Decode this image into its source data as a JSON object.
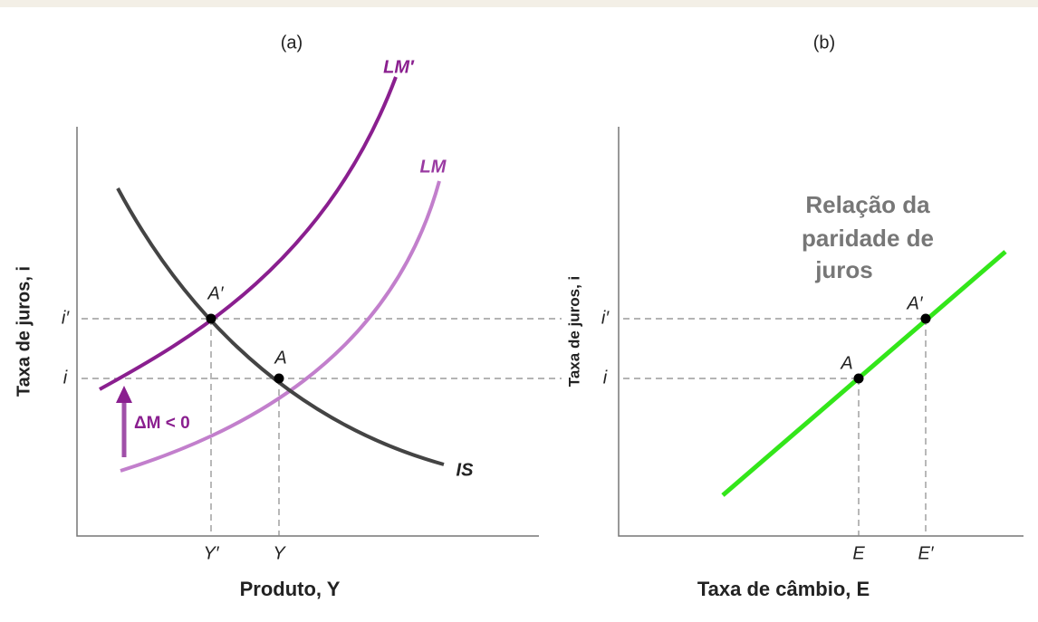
{
  "panels": [
    {
      "label": "(a)",
      "y_axis_label": "Taxa de juros, i",
      "x_axis_label": "Produto, Y",
      "curves": [
        "LM′",
        "LM",
        "IS"
      ],
      "points": [
        "A′",
        "A"
      ],
      "y_ticks": [
        "i′",
        "i"
      ],
      "x_ticks": [
        "Y′",
        "Y"
      ],
      "annotation": "ΔM < 0"
    },
    {
      "label": "(b)",
      "y_axis_label": "Taxa de juros, i",
      "x_axis_label": "Taxa de câmbio, E",
      "curve_label": [
        "Relação da",
        "paridade de",
        "juros"
      ],
      "points": [
        "A",
        "A′"
      ],
      "y_ticks": [
        "i′",
        "i"
      ],
      "x_ticks": [
        "E",
        "E′"
      ]
    }
  ]
}
